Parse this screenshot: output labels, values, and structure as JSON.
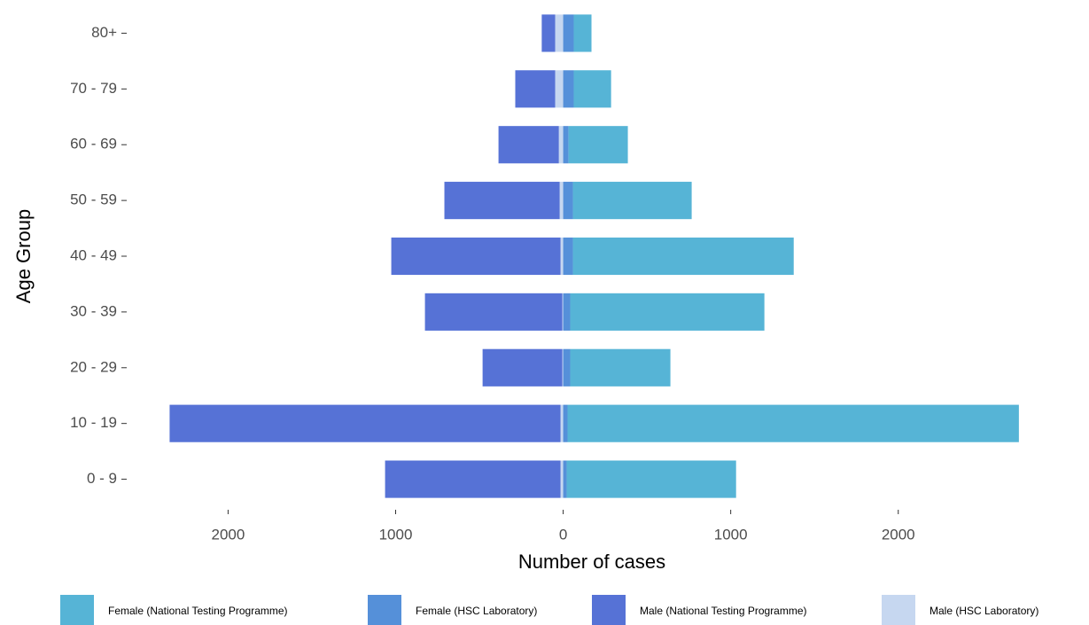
{
  "chart_data": {
    "type": "bar",
    "orientation": "horizontal",
    "stacked": true,
    "x_label": "Number of cases",
    "y_label": "Age Group",
    "categories": [
      "0 - 9",
      "10 - 19",
      "20 - 29",
      "30 - 39",
      "40 - 49",
      "50 - 59",
      "60 - 69",
      "70 - 79",
      "80+"
    ],
    "series": [
      {
        "name": "Female (National Testing Programme)",
        "color": "#56b4d6",
        "values": [
          1011,
          2694,
          598,
          1159,
          1318,
          709,
          354,
          223,
          106
        ]
      },
      {
        "name": "Female (HSC Laboratory)",
        "color": "#5590d9",
        "values": [
          21,
          26,
          42,
          42,
          58,
          58,
          32,
          63,
          63
        ]
      },
      {
        "name": "Male (National Testing Programme)",
        "color": "#5672d6",
        "values": [
          -1047,
          -2333,
          -476,
          -820,
          -1010,
          -688,
          -360,
          -238,
          -80
        ]
      },
      {
        "name": "Male (HSC Laboratory)",
        "color": "#c6d7f0",
        "values": [
          -16,
          -16,
          -5,
          -5,
          -16,
          -21,
          -26,
          -48,
          -48
        ]
      }
    ],
    "xlim": [
      -2420,
      2800
    ],
    "xticks": [
      {
        "value": -2000,
        "label": "2000"
      },
      {
        "value": -1000,
        "label": "1000"
      },
      0,
      1000,
      2000
    ],
    "grid": false,
    "legend": "bottom"
  }
}
